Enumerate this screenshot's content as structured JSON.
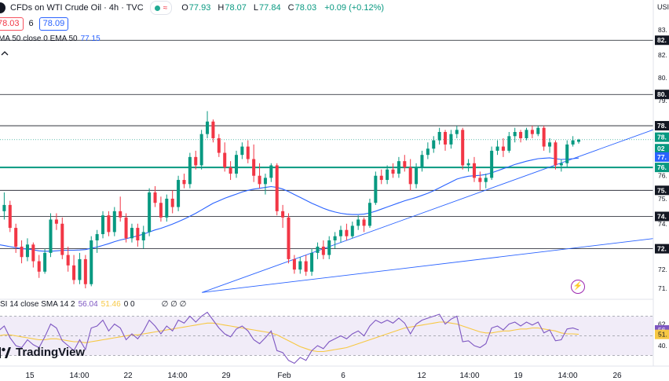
{
  "header": {
    "symbol_title": "CFDs on WTI Crude Oil · 4h · TVC",
    "ohlc": [
      {
        "key": "O",
        "value": "77.93"
      },
      {
        "key": "H",
        "value": "78.07"
      },
      {
        "key": "L",
        "value": "77.84"
      },
      {
        "key": "C",
        "value": "78.03"
      }
    ],
    "change": "+0.09 (+0.12%)",
    "sell_price": "78.03",
    "spread": "6",
    "buy_price": "78.09",
    "ema_label": "MA 50 close 0 EMA 50",
    "ema_value": "77.15",
    "collapse_icon": "chevron-up-icon"
  },
  "rsi_legend": {
    "label": "SI 14 close SMA 14 2",
    "rsi_value": "56.04",
    "sma_value": "51.46",
    "extra": "0 0",
    "extra2": "∅ ∅ ∅"
  },
  "brand": {
    "name": "TradingView",
    "logo_icon": "tradingview-logo-icon",
    "flash_icon": "lightning-icon"
  },
  "colors": {
    "up": "#089981",
    "down": "#f23645",
    "ema": "#2962ff",
    "rsi": "#7e57c2",
    "rsi_sma": "#f7c843",
    "support": "#089981",
    "trendline": "#2962ff",
    "rsi_band": "#ede7f6"
  },
  "chart_data": {
    "type": "candlestick",
    "x_tick_labels": [
      "15",
      "14:00",
      "22",
      "14:00",
      "29",
      "Feb",
      "6",
      "12",
      "14:00",
      "19",
      "14:00",
      "26"
    ],
    "y_axis": {
      "price_ticks": [
        "83.",
        "82.",
        "80.",
        "79.",
        "78.",
        "77.",
        "76.",
        "75.",
        "74.",
        "73.",
        "72.",
        "71."
      ],
      "header_label": "USI",
      "range": [
        70.6,
        83.6
      ],
      "price_labels": [
        {
          "text": "82.",
          "value": 82.8,
          "style": "dark"
        },
        {
          "text": "80.",
          "value": 80.2,
          "style": "dark"
        },
        {
          "text": "78.",
          "value": 78.7,
          "style": "dark"
        },
        {
          "text": "78.",
          "value": 78.15,
          "style": "green"
        },
        {
          "text": "02",
          "value": 77.6,
          "style": "green-sub"
        },
        {
          "text": "77.",
          "value": 77.2,
          "style": "blue"
        },
        {
          "text": "76.",
          "value": 76.7,
          "style": "teal"
        },
        {
          "text": "75.",
          "value": 75.6,
          "style": "dark"
        },
        {
          "text": "74.",
          "value": 74.35,
          "style": "dark"
        },
        {
          "text": "72.",
          "value": 72.8,
          "style": "dark"
        }
      ]
    },
    "horizontal_levels": [
      82.8,
      80.2,
      78.7,
      75.6,
      74.35,
      72.8
    ],
    "support_level": 76.7,
    "trendlines": [
      {
        "from": [
          0.302,
          70.7
        ],
        "to": [
          0.98,
          78.55
        ]
      },
      {
        "from": [
          0.302,
          70.7
        ],
        "to": [
          0.98,
          73.3
        ]
      }
    ],
    "candles": [
      [
        74.0,
        74.9,
        73.4,
        74.6
      ],
      [
        74.6,
        75.5,
        74.2,
        74.9
      ],
      [
        74.9,
        75.1,
        73.6,
        73.8
      ],
      [
        73.8,
        74.0,
        72.6,
        72.9
      ],
      [
        72.9,
        73.2,
        72.1,
        72.4
      ],
      [
        72.4,
        73.3,
        72.2,
        73.0
      ],
      [
        73.0,
        73.1,
        71.9,
        72.2
      ],
      [
        72.2,
        72.5,
        71.4,
        71.7
      ],
      [
        71.7,
        72.8,
        71.6,
        72.6
      ],
      [
        72.6,
        74.5,
        72.4,
        74.2
      ],
      [
        74.2,
        74.5,
        73.7,
        74.0
      ],
      [
        74.0,
        74.3,
        72.3,
        72.5
      ],
      [
        72.5,
        72.9,
        71.7,
        72.0
      ],
      [
        72.0,
        72.5,
        71.1,
        71.3
      ],
      [
        71.3,
        72.6,
        71.1,
        72.3
      ],
      [
        72.3,
        72.5,
        70.9,
        71.1
      ],
      [
        71.1,
        73.4,
        71.0,
        73.2
      ],
      [
        73.2,
        73.7,
        72.6,
        73.5
      ],
      [
        73.5,
        74.6,
        73.3,
        74.4
      ],
      [
        74.4,
        74.6,
        73.4,
        73.6
      ],
      [
        73.6,
        74.8,
        73.4,
        74.6
      ],
      [
        74.6,
        75.3,
        74.1,
        74.3
      ],
      [
        74.3,
        74.5,
        73.1,
        73.3
      ],
      [
        73.3,
        74.0,
        73.1,
        73.8
      ],
      [
        73.8,
        74.0,
        72.9,
        73.2
      ],
      [
        73.2,
        73.9,
        72.8,
        73.6
      ],
      [
        73.6,
        75.7,
        73.4,
        75.5
      ],
      [
        75.5,
        75.8,
        74.8,
        75.0
      ],
      [
        75.0,
        75.3,
        74.1,
        74.3
      ],
      [
        74.3,
        75.4,
        74.1,
        75.2
      ],
      [
        75.2,
        75.6,
        74.5,
        74.8
      ],
      [
        74.8,
        76.3,
        74.6,
        76.1
      ],
      [
        76.1,
        76.4,
        75.7,
        75.9
      ],
      [
        75.9,
        77.4,
        75.7,
        77.2
      ],
      [
        77.2,
        77.5,
        76.6,
        76.8
      ],
      [
        76.8,
        78.5,
        76.6,
        78.3
      ],
      [
        78.3,
        79.4,
        78.1,
        78.9
      ],
      [
        78.9,
        79.0,
        77.9,
        78.1
      ],
      [
        78.1,
        78.3,
        77.2,
        77.4
      ],
      [
        77.4,
        77.9,
        76.5,
        76.7
      ],
      [
        76.7,
        77.0,
        76.1,
        76.4
      ],
      [
        76.4,
        77.5,
        76.2,
        77.3
      ],
      [
        77.3,
        77.9,
        77.1,
        77.7
      ],
      [
        77.7,
        78.0,
        76.9,
        77.1
      ],
      [
        77.1,
        77.8,
        76.0,
        76.3
      ],
      [
        76.3,
        76.9,
        75.7,
        75.9
      ],
      [
        75.9,
        76.4,
        75.4,
        76.2
      ],
      [
        76.2,
        76.9,
        76.0,
        76.8
      ],
      [
        76.8,
        76.9,
        74.4,
        74.6
      ],
      [
        74.6,
        74.9,
        73.8,
        74.3
      ],
      [
        74.3,
        74.5,
        72.1,
        72.3
      ],
      [
        72.3,
        72.5,
        71.6,
        71.8
      ],
      [
        71.8,
        72.4,
        71.6,
        72.2
      ],
      [
        72.2,
        72.5,
        71.5,
        71.7
      ],
      [
        71.7,
        72.8,
        71.5,
        72.6
      ],
      [
        72.6,
        73.1,
        72.3,
        72.9
      ],
      [
        72.9,
        73.2,
        72.3,
        72.5
      ],
      [
        72.5,
        73.4,
        72.3,
        73.2
      ],
      [
        73.2,
        73.6,
        72.8,
        73.4
      ],
      [
        73.4,
        73.9,
        73.1,
        73.7
      ],
      [
        73.7,
        74.0,
        73.2,
        73.4
      ],
      [
        73.4,
        74.1,
        73.3,
        73.9
      ],
      [
        73.9,
        74.4,
        73.7,
        74.2
      ],
      [
        74.2,
        74.3,
        73.6,
        73.9
      ],
      [
        73.9,
        75.2,
        73.8,
        75.0
      ],
      [
        75.0,
        76.5,
        74.9,
        76.3
      ],
      [
        76.3,
        76.6,
        75.9,
        76.1
      ],
      [
        76.1,
        76.8,
        75.9,
        76.6
      ],
      [
        76.6,
        76.9,
        76.2,
        76.4
      ],
      [
        76.4,
        77.2,
        76.2,
        77.0
      ],
      [
        77.0,
        77.3,
        76.5,
        76.7
      ],
      [
        76.7,
        77.1,
        75.6,
        75.9
      ],
      [
        75.9,
        76.9,
        75.7,
        76.7
      ],
      [
        76.7,
        77.5,
        76.5,
        77.3
      ],
      [
        77.3,
        77.9,
        77.1,
        77.6
      ],
      [
        77.6,
        78.2,
        77.4,
        78.0
      ],
      [
        78.0,
        78.6,
        77.8,
        78.4
      ],
      [
        78.4,
        78.5,
        77.5,
        77.8
      ],
      [
        77.8,
        78.5,
        77.6,
        78.3
      ],
      [
        78.3,
        78.7,
        78.1,
        78.5
      ],
      [
        78.5,
        78.6,
        76.6,
        76.8
      ],
      [
        76.8,
        77.1,
        76.5,
        76.9
      ],
      [
        76.9,
        77.2,
        76.0,
        76.2
      ],
      [
        76.2,
        76.5,
        75.6,
        76.0
      ],
      [
        76.0,
        76.4,
        75.7,
        76.2
      ],
      [
        76.2,
        77.7,
        76.1,
        77.5
      ],
      [
        77.5,
        78.0,
        77.3,
        77.7
      ],
      [
        77.7,
        78.1,
        77.2,
        77.5
      ],
      [
        77.5,
        78.4,
        77.4,
        78.2
      ],
      [
        78.2,
        78.6,
        77.9,
        78.4
      ],
      [
        78.4,
        78.5,
        77.9,
        78.1
      ],
      [
        78.1,
        78.6,
        78.0,
        78.5
      ],
      [
        78.5,
        78.7,
        78.1,
        78.3
      ],
      [
        78.3,
        78.7,
        78.2,
        78.6
      ],
      [
        78.6,
        78.7,
        77.5,
        77.7
      ],
      [
        77.7,
        78.1,
        77.4,
        77.9
      ],
      [
        77.9,
        78.0,
        76.6,
        76.8
      ],
      [
        76.8,
        77.1,
        76.5,
        76.9
      ],
      [
        76.9,
        78.0,
        76.7,
        77.8
      ],
      [
        77.8,
        78.2,
        77.7,
        78.0
      ],
      [
        77.93,
        78.07,
        77.84,
        78.03
      ]
    ],
    "ema50": [
      73.0,
      72.95,
      72.9,
      72.85,
      72.8,
      72.78,
      72.75,
      72.7,
      72.68,
      72.68,
      72.7,
      72.72,
      72.73,
      72.73,
      72.74,
      72.76,
      72.82,
      72.88,
      72.96,
      73.04,
      73.14,
      73.22,
      73.28,
      73.35,
      73.42,
      73.5,
      73.6,
      73.7,
      73.78,
      73.88,
      73.98,
      74.1,
      74.22,
      74.36,
      74.5,
      74.66,
      74.82,
      74.98,
      75.1,
      75.22,
      75.32,
      75.42,
      75.52,
      75.6,
      75.66,
      75.7,
      75.74,
      75.78,
      75.74,
      75.66,
      75.54,
      75.4,
      75.26,
      75.12,
      74.98,
      74.86,
      74.74,
      74.64,
      74.56,
      74.5,
      74.46,
      74.44,
      74.44,
      74.46,
      74.52,
      74.6,
      74.7,
      74.8,
      74.9,
      75.0,
      75.1,
      75.18,
      75.26,
      75.36,
      75.46,
      75.58,
      75.72,
      75.86,
      76.0,
      76.14,
      76.22,
      76.28,
      76.3,
      76.32,
      76.36,
      76.44,
      76.54,
      76.64,
      76.74,
      76.84,
      76.92,
      77.0,
      77.06,
      77.12,
      77.14,
      77.16,
      77.12,
      77.08,
      77.1,
      77.12,
      77.15
    ],
    "rsi": {
      "title": "RSI 14",
      "levels": [
        70,
        50,
        30
      ],
      "y_ticks": [
        "62.",
        "56.",
        "51.",
        "40."
      ],
      "rsi_values": [
        55,
        60,
        48,
        40,
        38,
        46,
        41,
        38,
        49,
        62,
        58,
        45,
        40,
        35,
        46,
        36,
        58,
        60,
        66,
        55,
        62,
        58,
        46,
        52,
        47,
        55,
        66,
        60,
        52,
        60,
        55,
        66,
        63,
        70,
        64,
        70,
        74,
        66,
        58,
        52,
        49,
        57,
        60,
        55,
        46,
        42,
        48,
        55,
        35,
        33,
        25,
        22,
        28,
        25,
        35,
        40,
        37,
        44,
        47,
        50,
        47,
        52,
        55,
        50,
        60,
        66,
        63,
        66,
        63,
        68,
        63,
        52,
        62,
        66,
        68,
        70,
        72,
        62,
        67,
        70,
        44,
        45,
        40,
        38,
        42,
        58,
        60,
        56,
        62,
        64,
        60,
        64,
        61,
        64,
        53,
        56,
        45,
        46,
        57,
        58,
        56
      ],
      "sma_values": [
        50,
        51,
        51,
        50,
        49,
        48,
        47,
        46,
        46,
        47,
        47,
        46,
        45,
        44,
        44,
        43,
        44,
        45,
        46,
        47,
        48,
        49,
        50,
        51,
        51,
        52,
        53,
        54,
        55,
        56,
        57,
        58,
        59,
        60,
        61,
        62,
        63,
        63,
        62,
        61,
        60,
        59,
        58,
        57,
        56,
        55,
        54,
        53,
        51,
        48,
        45,
        42,
        39,
        37,
        35,
        34,
        34,
        35,
        36,
        37,
        38,
        40,
        42,
        44,
        46,
        48,
        50,
        52,
        54,
        56,
        58,
        59,
        60,
        61,
        62,
        63,
        64,
        64,
        63,
        62,
        60,
        58,
        56,
        54,
        53,
        53,
        54,
        55,
        55,
        56,
        57,
        57,
        58,
        58,
        57,
        56,
        55,
        53,
        52,
        52,
        51.5
      ]
    }
  }
}
